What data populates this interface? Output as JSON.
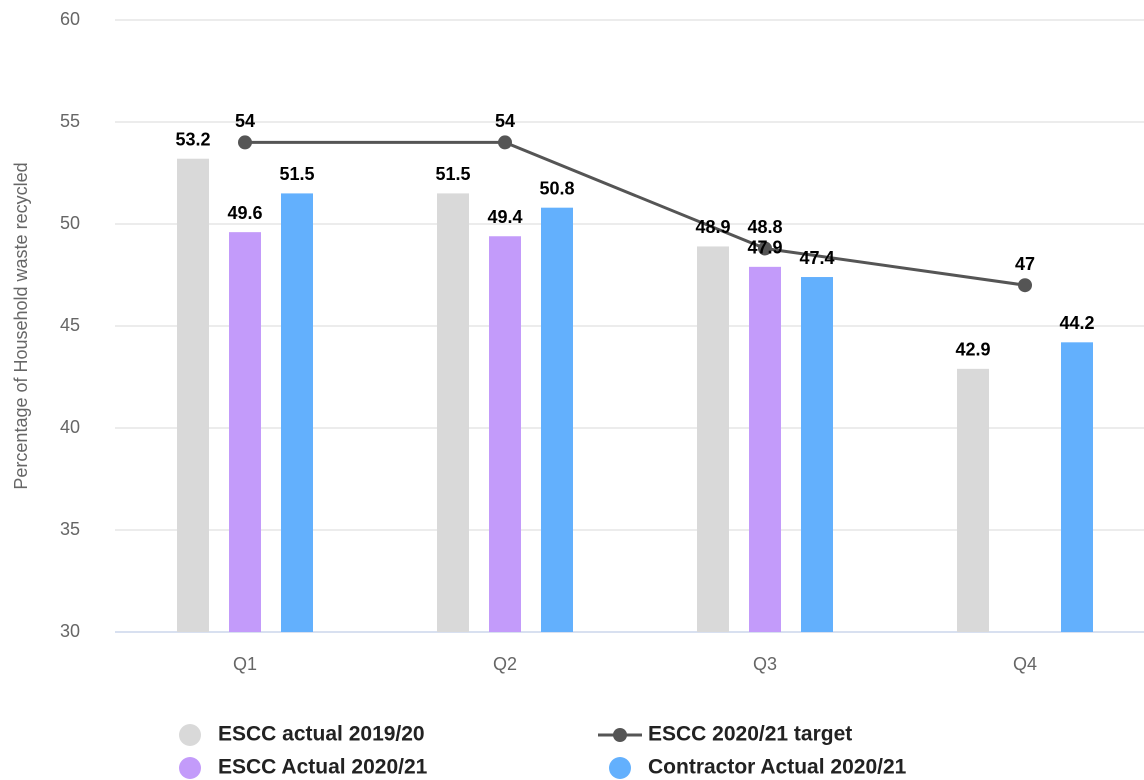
{
  "chart_data": {
    "type": "bar",
    "y_label": "Percentage of Household waste recycled",
    "categories": [
      "Q1",
      "Q2",
      "Q3",
      "Q4"
    ],
    "series": [
      {
        "name": "ESCC actual 2019/20",
        "color": "#d9d9d9",
        "values": [
          53.2,
          51.5,
          48.9,
          42.9
        ]
      },
      {
        "name": "ESCC Actual 2020/21",
        "color": "#c39bfa",
        "values": [
          49.6,
          49.4,
          47.9,
          null
        ]
      },
      {
        "name": "Contractor Actual 2020/21",
        "color": "#63b0fd",
        "values": [
          51.5,
          50.8,
          47.4,
          44.2
        ]
      },
      {
        "name": "ESCC 2020/21 target",
        "color": "#555555",
        "type": "line",
        "values": [
          54,
          54,
          48.8,
          47
        ]
      }
    ],
    "ylim": [
      30,
      60
    ],
    "yticks": [
      30,
      35,
      40,
      45,
      50,
      55,
      60
    ],
    "grid": true
  }
}
